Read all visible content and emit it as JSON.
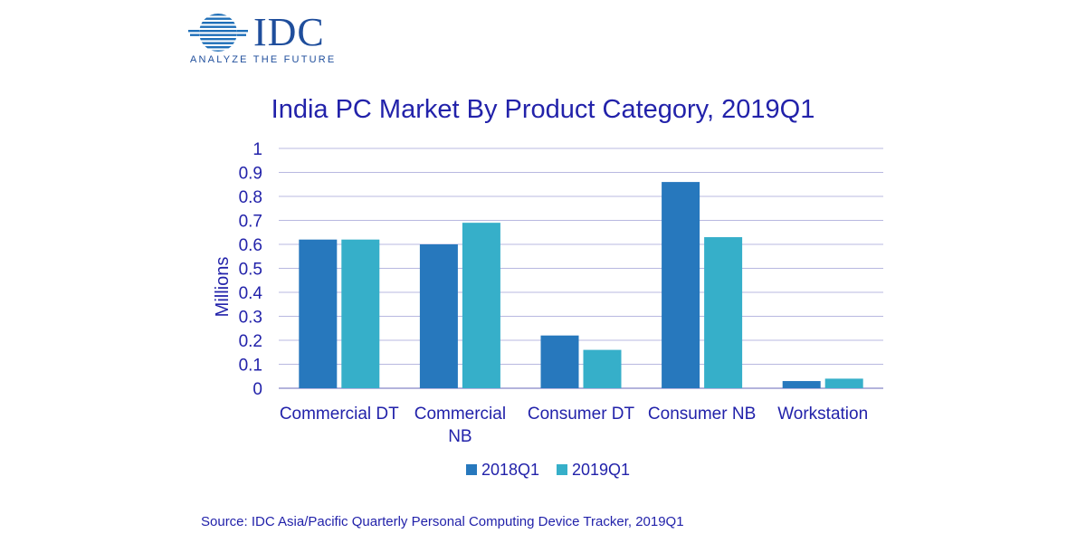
{
  "logo": {
    "name": "IDC",
    "tagline": "ANALYZE THE FUTURE"
  },
  "chart_data": {
    "type": "bar",
    "title": "India PC Market By Product Category, 2019Q1",
    "xlabel": "",
    "ylabel": "Millions",
    "ylim": [
      0,
      1
    ],
    "yticks": [
      "0",
      "0.1",
      "0.2",
      "0.3",
      "0.4",
      "0.5",
      "0.6",
      "0.7",
      "0.8",
      "0.9",
      "1"
    ],
    "grid": true,
    "legend_position": "bottom",
    "categories": [
      [
        "Commercial DT"
      ],
      [
        "Commercial",
        "NB"
      ],
      [
        "Consumer DT"
      ],
      [
        "Consumer NB"
      ],
      [
        "Workstation"
      ]
    ],
    "series": [
      {
        "name": "2018Q1",
        "color": "#2778bd",
        "values": [
          0.62,
          0.6,
          0.22,
          0.86,
          0.03
        ]
      },
      {
        "name": "2019Q1",
        "color": "#36afc9",
        "values": [
          0.62,
          0.69,
          0.16,
          0.63,
          0.04
        ]
      }
    ]
  },
  "colors": {
    "axis_text": "#2222aa",
    "grid": "#b8b8e0",
    "logo": "#1f4e9c"
  },
  "source": "Source: IDC Asia/Pacific Quarterly Personal Computing Device  Tracker, 2019Q1"
}
